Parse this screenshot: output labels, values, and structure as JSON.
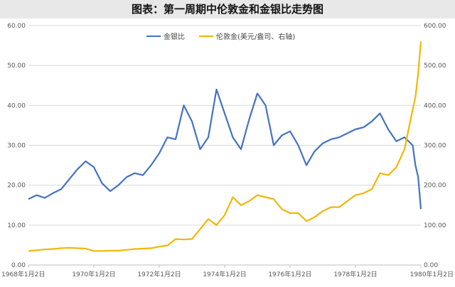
{
  "chart_data": {
    "type": "line",
    "title": "图表：第一周期中伦敦金和金银比走势图",
    "x_range": [
      "1968-01-02",
      "1980-01-02"
    ],
    "x_ticks": [
      "1968年1月2日",
      "1970年1月2日",
      "1972年1月2日",
      "1974年1月2日",
      "1976年1月2日",
      "1978年1月2日",
      "1980年1月2日"
    ],
    "y_left": {
      "min": 0,
      "max": 60,
      "ticks": [
        "0.00",
        "10.00",
        "20.00",
        "30.00",
        "40.00",
        "50.00",
        "60.00"
      ]
    },
    "y_right": {
      "min": 0,
      "max": 600,
      "ticks": [
        "0.00",
        "100.00",
        "200.00",
        "300.00",
        "400.00",
        "500.00",
        "600.00"
      ]
    },
    "legend_position": "top-center",
    "grid": "horizontal",
    "series": [
      {
        "name": "金银比",
        "axis": "left",
        "color": "#4472C4",
        "x": [
          "1968-01",
          "1968-04",
          "1968-07",
          "1968-10",
          "1969-01",
          "1969-04",
          "1969-07",
          "1969-10",
          "1970-01",
          "1970-04",
          "1970-07",
          "1970-10",
          "1971-01",
          "1971-04",
          "1971-07",
          "1971-10",
          "1972-01",
          "1972-04",
          "1972-07",
          "1972-10",
          "1973-01",
          "1973-04",
          "1973-07",
          "1973-10",
          "1974-01",
          "1974-04",
          "1974-07",
          "1974-10",
          "1975-01",
          "1975-04",
          "1975-07",
          "1975-10",
          "1976-01",
          "1976-04",
          "1976-07",
          "1976-10",
          "1977-01",
          "1977-04",
          "1977-07",
          "1977-10",
          "1978-01",
          "1978-04",
          "1978-07",
          "1978-10",
          "1979-01",
          "1979-04",
          "1979-07",
          "1979-10",
          "1979-11",
          "1979-12",
          "1980-01"
        ],
        "values": [
          16.5,
          17.5,
          16.8,
          18.0,
          19.0,
          21.5,
          24.0,
          26.0,
          24.5,
          20.5,
          18.5,
          20.0,
          22.0,
          23.0,
          22.5,
          25.0,
          28.0,
          32.0,
          31.5,
          40.0,
          36.0,
          29.0,
          32.0,
          44.0,
          38.0,
          32.0,
          29.0,
          36.5,
          43.0,
          40.0,
          30.0,
          32.5,
          33.5,
          30.0,
          25.0,
          28.5,
          30.5,
          31.5,
          32.0,
          33.0,
          34.0,
          34.5,
          36.0,
          38.0,
          34.0,
          31.0,
          32.0,
          30.0,
          25.0,
          22.0,
          14.0
        ]
      },
      {
        "name": "伦敦金(美元/盎司、右轴)",
        "axis": "right",
        "color": "#F2B705",
        "x": [
          "1968-01",
          "1968-04",
          "1968-07",
          "1968-10",
          "1969-01",
          "1969-04",
          "1969-07",
          "1969-10",
          "1970-01",
          "1970-04",
          "1970-07",
          "1970-10",
          "1971-01",
          "1971-04",
          "1971-07",
          "1971-10",
          "1972-01",
          "1972-04",
          "1972-07",
          "1972-10",
          "1973-01",
          "1973-04",
          "1973-07",
          "1973-10",
          "1974-01",
          "1974-04",
          "1974-07",
          "1974-10",
          "1975-01",
          "1975-04",
          "1975-07",
          "1975-10",
          "1976-01",
          "1976-04",
          "1976-07",
          "1976-10",
          "1977-01",
          "1977-04",
          "1977-07",
          "1977-10",
          "1978-01",
          "1978-04",
          "1978-07",
          "1978-10",
          "1979-01",
          "1979-04",
          "1979-07",
          "1979-10",
          "1979-11",
          "1979-12",
          "1980-01"
        ],
        "values": [
          35,
          37,
          39,
          40,
          42,
          43,
          42,
          41,
          35,
          35,
          36,
          36,
          38,
          40,
          41,
          42,
          46,
          49,
          65,
          64,
          65,
          90,
          115,
          100,
          125,
          170,
          150,
          160,
          175,
          170,
          165,
          140,
          130,
          130,
          110,
          120,
          135,
          145,
          145,
          160,
          175,
          180,
          190,
          230,
          225,
          245,
          290,
          390,
          420,
          480,
          560
        ]
      }
    ]
  }
}
